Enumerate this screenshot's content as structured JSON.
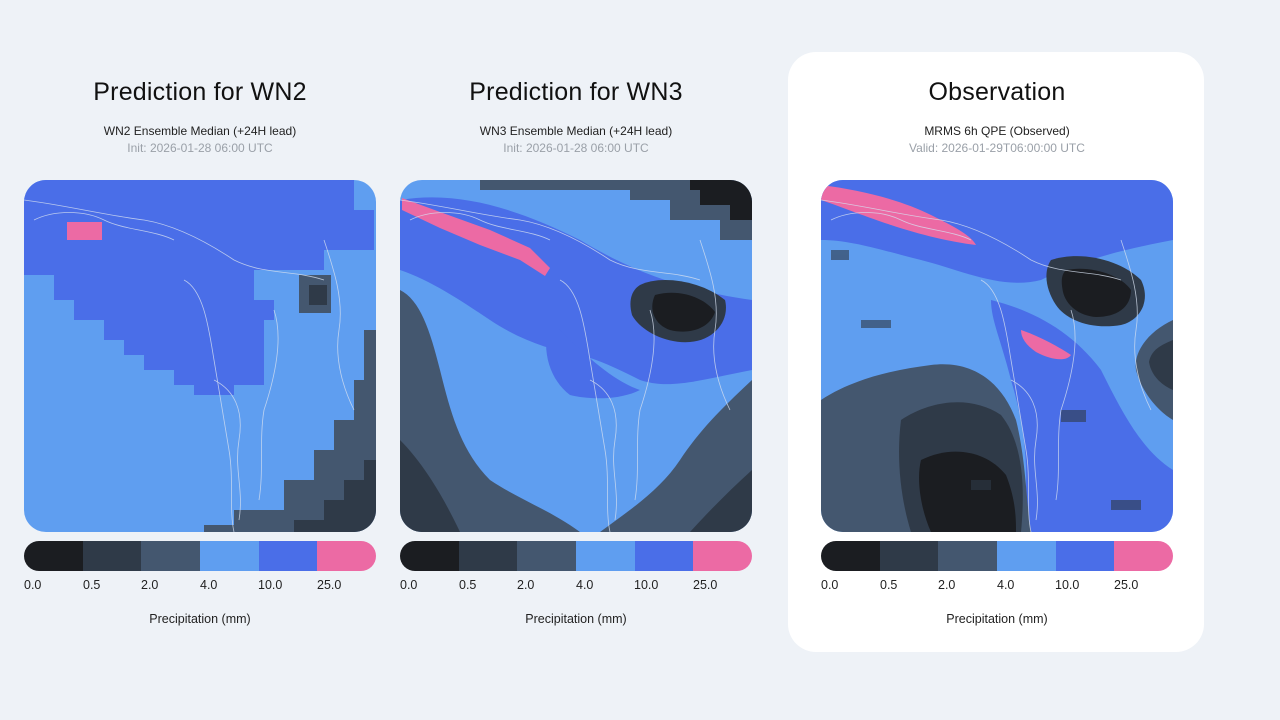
{
  "colors": {
    "page_bg": "#eef2f7",
    "levels": [
      "#1b1d21",
      "#2f3a48",
      "#44576f",
      "#5f9ef0",
      "#4a6ee8",
      "#ec6aa4"
    ]
  },
  "colorbar": {
    "ticks": [
      "0.0",
      "0.5",
      "2.0",
      "4.0",
      "10.0",
      "25.0"
    ],
    "label": "Precipitation (mm)"
  },
  "panels": [
    {
      "title": "Prediction for WN2",
      "subtitle": "WN2 Ensemble Median (+24H lead)",
      "timestamp": "Init: 2026-01-28 06:00 UTC"
    },
    {
      "title": "Prediction for WN3",
      "subtitle": "WN3 Ensemble Median (+24H lead)",
      "timestamp": "Init: 2026-01-28 06:00 UTC"
    },
    {
      "title": "Observation",
      "subtitle": "MRMS 6h QPE (Observed)",
      "timestamp": "Valid: 2026-01-29T06:00:00 UTC"
    }
  ]
}
